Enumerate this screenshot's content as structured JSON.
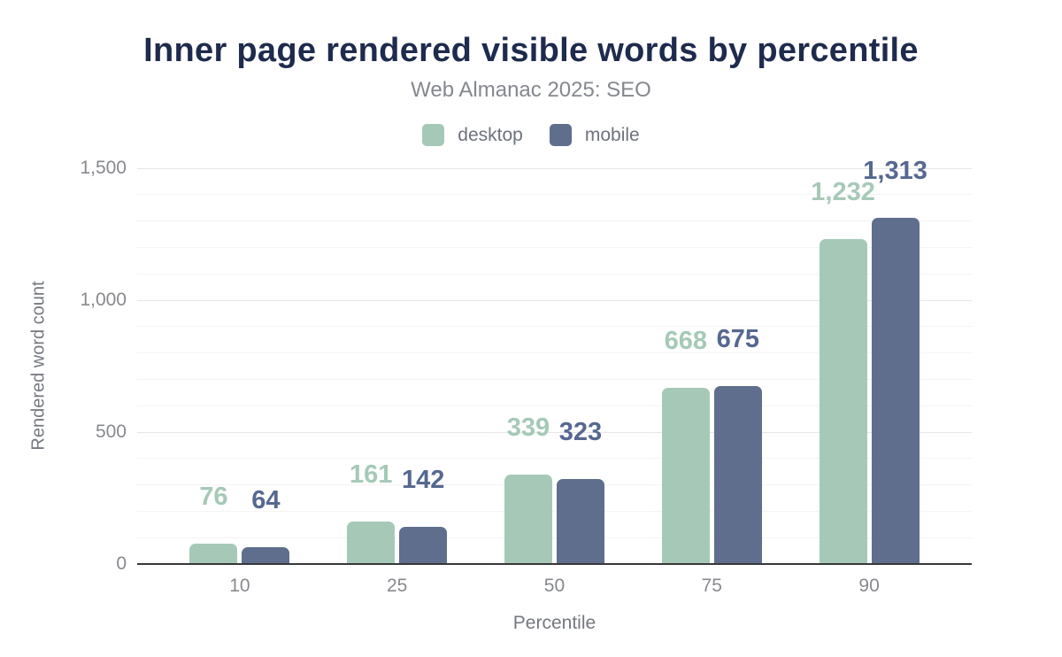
{
  "header": {
    "title": "Inner page rendered visible words by percentile",
    "subtitle": "Web Almanac 2025: SEO"
  },
  "chart_data": {
    "type": "bar",
    "title": "Inner page rendered visible words by percentile",
    "subtitle": "Web Almanac 2025: SEO",
    "categories": [
      "10",
      "25",
      "50",
      "75",
      "90"
    ],
    "series": [
      {
        "name": "desktop",
        "color": "#a6c9b7",
        "label_color": "#a6c9b7",
        "values": [
          76,
          161,
          339,
          668,
          1232
        ],
        "value_labels": [
          "76",
          "161",
          "339",
          "668",
          "1,232"
        ]
      },
      {
        "name": "mobile",
        "color": "#5f6e8c",
        "label_color": "#566890",
        "values": [
          64,
          142,
          323,
          675,
          1313
        ],
        "value_labels": [
          "64",
          "142",
          "323",
          "675",
          "1,313"
        ]
      }
    ],
    "xlabel": "Percentile",
    "ylabel": "Rendered word count",
    "ylim": [
      0,
      1500
    ],
    "yticks": [
      0,
      500,
      1000,
      1500
    ],
    "ytick_labels": [
      "0",
      "500",
      "1,000",
      "1,500"
    ],
    "minor_grid_step": 100,
    "major_grid_step": 500,
    "grid": true,
    "legend_position": "top",
    "colors": {
      "title": "#1e2b4d",
      "subtitle": "#85888e",
      "axis_text": "#87898e",
      "axis_line": "#37383a",
      "major_grid": "#e6e6e8",
      "minor_grid": "#f4f4f5",
      "background": "#ffffff"
    }
  }
}
